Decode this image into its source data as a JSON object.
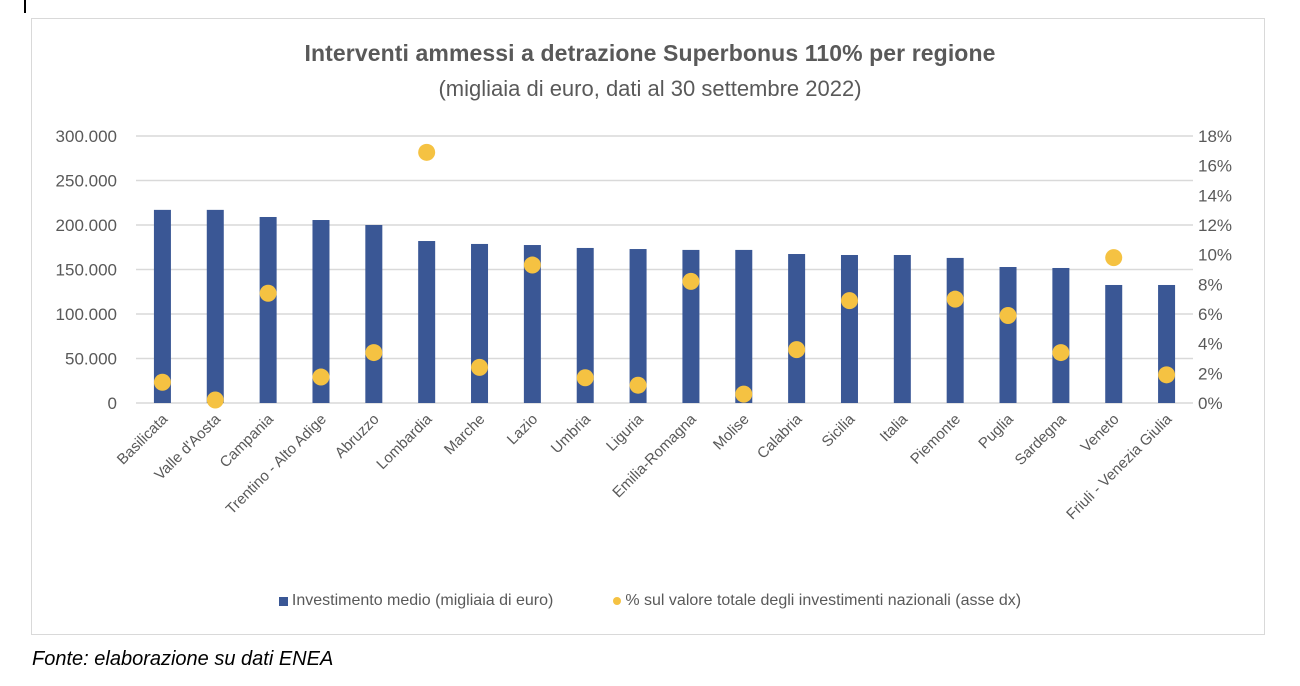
{
  "chart_data": {
    "type": "bar",
    "title": "Interventi ammessi a detrazione Superbonus 110% per regione",
    "subtitle": "(migliaia di euro, dati al 30 settembre 2022)",
    "xlabel": "",
    "ylabel": "",
    "ylim": [
      0,
      300000
    ],
    "y2lim": [
      0,
      0.18
    ],
    "grid": true,
    "legend_position": "bottom",
    "y_ticks": [
      "0",
      "50.000",
      "100.000",
      "150.000",
      "200.000",
      "250.000",
      "300.000"
    ],
    "y_tick_values": [
      0,
      50000,
      100000,
      150000,
      200000,
      250000,
      300000
    ],
    "y2_ticks": [
      "0%",
      "2%",
      "4%",
      "6%",
      "8%",
      "10%",
      "12%",
      "14%",
      "16%",
      "18%"
    ],
    "y2_tick_values": [
      0,
      0.02,
      0.04,
      0.06,
      0.08,
      0.1,
      0.12,
      0.14,
      0.16,
      0.18
    ],
    "categories": [
      "Basilicata",
      "Valle d'Aosta",
      "Campania",
      "Trentino - Alto Adige",
      "Abruzzo",
      "Lombardia",
      "Marche",
      "Lazio",
      "Umbria",
      "Liguria",
      "Emilia-Romagna",
      "Molise",
      "Calabria",
      "Sicilia",
      "Italia",
      "Piemonte",
      "Puglia",
      "Sardegna",
      "Veneto",
      "Friuli - Venezia Giulia"
    ],
    "series": [
      {
        "name": "Investimento medio (migliaia di euro)",
        "type": "bar",
        "axis": "left",
        "color": "#3a5795",
        "values": [
          217000,
          217000,
          209000,
          205600,
          200000,
          182000,
          178700,
          177500,
          174200,
          173000,
          172000,
          172000,
          167400,
          166300,
          166300,
          163000,
          152800,
          151700,
          132600,
          132600
        ]
      },
      {
        "name": "% sul valore totale degli investimenti nazionali (asse dx)",
        "type": "scatter",
        "axis": "right",
        "color": "#f5c242",
        "values": [
          0.014,
          0.002,
          0.074,
          0.0175,
          0.034,
          0.169,
          0.024,
          0.093,
          0.017,
          0.012,
          0.082,
          0.006,
          0.036,
          0.069,
          null,
          0.07,
          0.059,
          0.034,
          0.098,
          0.019
        ]
      }
    ]
  },
  "legend": {
    "bar_label": "Investimento medio (migliaia di euro)",
    "dot_label": "% sul valore totale degli investimenti nazionali (asse dx)"
  },
  "source_note": "Fonte: elaborazione su dati ENEA"
}
